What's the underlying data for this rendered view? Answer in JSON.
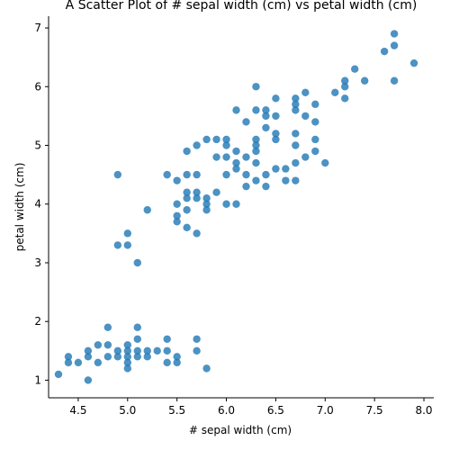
{
  "chart_data": {
    "type": "scatter",
    "title": "A Scatter Plot of # sepal width (cm) vs petal width (cm)",
    "xlabel": "# sepal width (cm)",
    "ylabel": "petal width (cm)",
    "xlim": [
      4.2,
      8.1
    ],
    "ylim": [
      0.7,
      7.2
    ],
    "x_ticks": [
      4.5,
      5.0,
      5.5,
      6.0,
      6.5,
      7.0,
      7.5,
      8.0
    ],
    "x_tick_labels": [
      "4.5",
      "5.0",
      "5.5",
      "6.0",
      "6.5",
      "7.0",
      "7.5",
      "8.0"
    ],
    "y_ticks": [
      1,
      2,
      3,
      4,
      5,
      6,
      7
    ],
    "y_tick_labels": [
      "1",
      "2",
      "3",
      "4",
      "5",
      "6",
      "7"
    ],
    "grid": false,
    "marker_color": "#1f77b4",
    "points": [
      [
        4.3,
        1.1
      ],
      [
        4.4,
        1.3
      ],
      [
        4.4,
        1.4
      ],
      [
        4.5,
        1.3
      ],
      [
        4.6,
        1.0
      ],
      [
        4.6,
        1.4
      ],
      [
        4.6,
        1.5
      ],
      [
        4.7,
        1.3
      ],
      [
        4.7,
        1.6
      ],
      [
        4.8,
        1.4
      ],
      [
        4.8,
        1.6
      ],
      [
        4.8,
        1.9
      ],
      [
        4.9,
        1.4
      ],
      [
        4.9,
        1.5
      ],
      [
        5.0,
        1.2
      ],
      [
        5.0,
        1.3
      ],
      [
        5.0,
        1.4
      ],
      [
        5.0,
        1.5
      ],
      [
        5.0,
        1.6
      ],
      [
        5.1,
        1.4
      ],
      [
        5.1,
        1.5
      ],
      [
        5.1,
        1.7
      ],
      [
        5.1,
        1.9
      ],
      [
        5.2,
        1.4
      ],
      [
        5.2,
        1.5
      ],
      [
        5.3,
        1.5
      ],
      [
        5.4,
        1.3
      ],
      [
        5.4,
        1.5
      ],
      [
        5.4,
        1.7
      ],
      [
        5.5,
        1.3
      ],
      [
        5.5,
        1.4
      ],
      [
        5.7,
        1.5
      ],
      [
        5.7,
        1.7
      ],
      [
        5.8,
        1.2
      ],
      [
        4.9,
        3.3
      ],
      [
        4.9,
        4.5
      ],
      [
        5.0,
        3.3
      ],
      [
        5.0,
        3.5
      ],
      [
        5.1,
        3.0
      ],
      [
        5.2,
        3.9
      ],
      [
        5.4,
        4.5
      ],
      [
        5.5,
        3.7
      ],
      [
        5.5,
        3.8
      ],
      [
        5.5,
        4.0
      ],
      [
        5.5,
        4.4
      ],
      [
        5.6,
        3.6
      ],
      [
        5.6,
        3.9
      ],
      [
        5.6,
        4.1
      ],
      [
        5.6,
        4.2
      ],
      [
        5.6,
        4.5
      ],
      [
        5.6,
        4.9
      ],
      [
        5.7,
        3.5
      ],
      [
        5.7,
        4.1
      ],
      [
        5.7,
        4.2
      ],
      [
        5.7,
        4.5
      ],
      [
        5.7,
        5.0
      ],
      [
        5.8,
        3.9
      ],
      [
        5.8,
        4.0
      ],
      [
        5.8,
        4.1
      ],
      [
        5.8,
        5.1
      ],
      [
        5.9,
        4.2
      ],
      [
        5.9,
        4.8
      ],
      [
        5.9,
        5.1
      ],
      [
        6.0,
        4.0
      ],
      [
        6.0,
        4.5
      ],
      [
        6.0,
        4.8
      ],
      [
        6.0,
        5.0
      ],
      [
        6.0,
        5.1
      ],
      [
        6.1,
        4.0
      ],
      [
        6.1,
        4.6
      ],
      [
        6.1,
        4.7
      ],
      [
        6.1,
        4.9
      ],
      [
        6.1,
        5.6
      ],
      [
        6.2,
        4.3
      ],
      [
        6.2,
        4.5
      ],
      [
        6.2,
        4.8
      ],
      [
        6.2,
        5.4
      ],
      [
        6.3,
        4.4
      ],
      [
        6.3,
        4.7
      ],
      [
        6.3,
        4.9
      ],
      [
        6.3,
        5.0
      ],
      [
        6.3,
        5.1
      ],
      [
        6.3,
        5.6
      ],
      [
        6.3,
        6.0
      ],
      [
        6.4,
        4.3
      ],
      [
        6.4,
        4.5
      ],
      [
        6.4,
        5.3
      ],
      [
        6.4,
        5.5
      ],
      [
        6.4,
        5.6
      ],
      [
        6.5,
        4.6
      ],
      [
        6.5,
        5.1
      ],
      [
        6.5,
        5.2
      ],
      [
        6.5,
        5.5
      ],
      [
        6.5,
        5.8
      ],
      [
        6.6,
        4.4
      ],
      [
        6.6,
        4.6
      ],
      [
        6.7,
        4.4
      ],
      [
        6.7,
        4.7
      ],
      [
        6.7,
        5.0
      ],
      [
        6.7,
        5.2
      ],
      [
        6.7,
        5.6
      ],
      [
        6.7,
        5.7
      ],
      [
        6.7,
        5.8
      ],
      [
        6.8,
        4.8
      ],
      [
        6.8,
        5.5
      ],
      [
        6.8,
        5.9
      ],
      [
        6.9,
        4.9
      ],
      [
        6.9,
        5.1
      ],
      [
        6.9,
        5.4
      ],
      [
        6.9,
        5.7
      ],
      [
        7.0,
        4.7
      ],
      [
        7.1,
        5.9
      ],
      [
        7.2,
        5.8
      ],
      [
        7.2,
        6.0
      ],
      [
        7.2,
        6.1
      ],
      [
        7.3,
        6.3
      ],
      [
        7.4,
        6.1
      ],
      [
        7.6,
        6.6
      ],
      [
        7.7,
        6.1
      ],
      [
        7.7,
        6.7
      ],
      [
        7.7,
        6.9
      ],
      [
        7.9,
        6.4
      ]
    ]
  }
}
